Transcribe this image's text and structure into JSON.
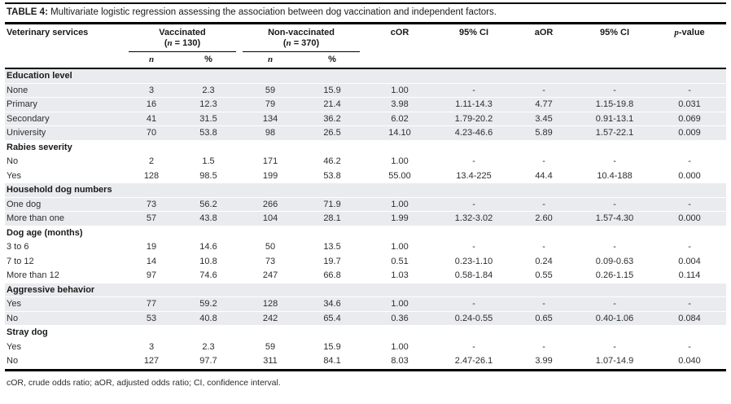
{
  "title": {
    "label": "TABLE 4:",
    "text": " Multivariate logistic regression assessing the association between dog vaccination and independent factors."
  },
  "header": {
    "variable_col": "Veterinary services",
    "groups": [
      {
        "name": "Vaccinated",
        "open": "(",
        "n": "n",
        "rest": " = 130)"
      },
      {
        "name": "Non-vaccinated",
        "open": "(",
        "n": "n",
        "rest": " = 370)"
      }
    ],
    "sub_n": "n",
    "sub_pct": "%",
    "cor": "cOR",
    "ci1": "95% CI",
    "aor": "aOR",
    "ci2": "95% CI",
    "pvalue": {
      "p": "p",
      "suffix": "-value"
    }
  },
  "column_keys": [
    "vaccinated-n",
    "vaccinated-pct",
    "nonvaccinated-n",
    "nonvaccinated-pct",
    "cor",
    "cor-95ci",
    "aor",
    "aor-95ci",
    "p-value"
  ],
  "sections": [
    {
      "header": "Education level",
      "shaded": true,
      "rows": [
        {
          "label": "None",
          "cells": [
            "3",
            "2.3",
            "59",
            "15.9",
            "1.00",
            "-",
            "-",
            "-",
            "-"
          ]
        },
        {
          "label": "Primary",
          "cells": [
            "16",
            "12.3",
            "79",
            "21.4",
            "3.98",
            "1.11-14.3",
            "4.77",
            "1.15-19.8",
            "0.031"
          ]
        },
        {
          "label": "Secondary",
          "cells": [
            "41",
            "31.5",
            "134",
            "36.2",
            "6.02",
            "1.79-20.2",
            "3.45",
            "0.91-13.1",
            "0.069"
          ]
        },
        {
          "label": "University",
          "cells": [
            "70",
            "53.8",
            "98",
            "26.5",
            "14.10",
            "4.23-46.6",
            "5.89",
            "1.57-22.1",
            "0.009"
          ]
        }
      ]
    },
    {
      "header": "Rabies severity",
      "shaded": false,
      "rows": [
        {
          "label": "No",
          "cells": [
            "2",
            "1.5",
            "171",
            "46.2",
            "1.00",
            "-",
            "-",
            "-",
            "-"
          ]
        },
        {
          "label": "Yes",
          "cells": [
            "128",
            "98.5",
            "199",
            "53.8",
            "55.00",
            "13.4-225",
            "44.4",
            "10.4-188",
            "0.000"
          ]
        }
      ]
    },
    {
      "header": "Household dog numbers",
      "shaded": true,
      "rows": [
        {
          "label": "One dog",
          "cells": [
            "73",
            "56.2",
            "266",
            "71.9",
            "1.00",
            "-",
            "-",
            "-",
            "-"
          ]
        },
        {
          "label": "More than one",
          "cells": [
            "57",
            "43.8",
            "104",
            "28.1",
            "1.99",
            "1.32-3.02",
            "2.60",
            "1.57-4.30",
            "0.000"
          ]
        }
      ]
    },
    {
      "header": "Dog age (months)",
      "shaded": false,
      "rows": [
        {
          "label": "3 to 6",
          "cells": [
            "19",
            "14.6",
            "50",
            "13.5",
            "1.00",
            "-",
            "-",
            "-",
            "-"
          ]
        },
        {
          "label": "7 to 12",
          "cells": [
            "14",
            "10.8",
            "73",
            "19.7",
            "0.51",
            "0.23-1.10",
            "0.24",
            "0.09-0.63",
            "0.004"
          ]
        },
        {
          "label": "More than 12",
          "cells": [
            "97",
            "74.6",
            "247",
            "66.8",
            "1.03",
            "0.58-1.84",
            "0.55",
            "0.26-1.15",
            "0.114"
          ]
        }
      ]
    },
    {
      "header": "Aggressive behavior",
      "shaded": true,
      "rows": [
        {
          "label": "Yes",
          "cells": [
            "77",
            "59.2",
            "128",
            "34.6",
            "1.00",
            "-",
            "-",
            "-",
            "-"
          ]
        },
        {
          "label": "No",
          "cells": [
            "53",
            "40.8",
            "242",
            "65.4",
            "0.36",
            "0.24-0.55",
            "0.65",
            "0.40-1.06",
            "0.084"
          ]
        }
      ]
    },
    {
      "header": "Stray dog",
      "shaded": false,
      "rows": [
        {
          "label": "Yes",
          "cells": [
            "3",
            "2.3",
            "59",
            "15.9",
            "1.00",
            "-",
            "-",
            "-",
            "-"
          ]
        },
        {
          "label": "No",
          "cells": [
            "127",
            "97.7",
            "311",
            "84.1",
            "8.03",
            "2.47-26.1",
            "3.99",
            "1.07-14.9",
            "0.040"
          ]
        }
      ]
    }
  ],
  "footnote": "cOR, crude odds ratio; aOR, adjusted odds ratio; CI, confidence interval.",
  "colors": {
    "shade": "#e9ebee",
    "rule": "#000000",
    "text": "#2b2b2b"
  }
}
